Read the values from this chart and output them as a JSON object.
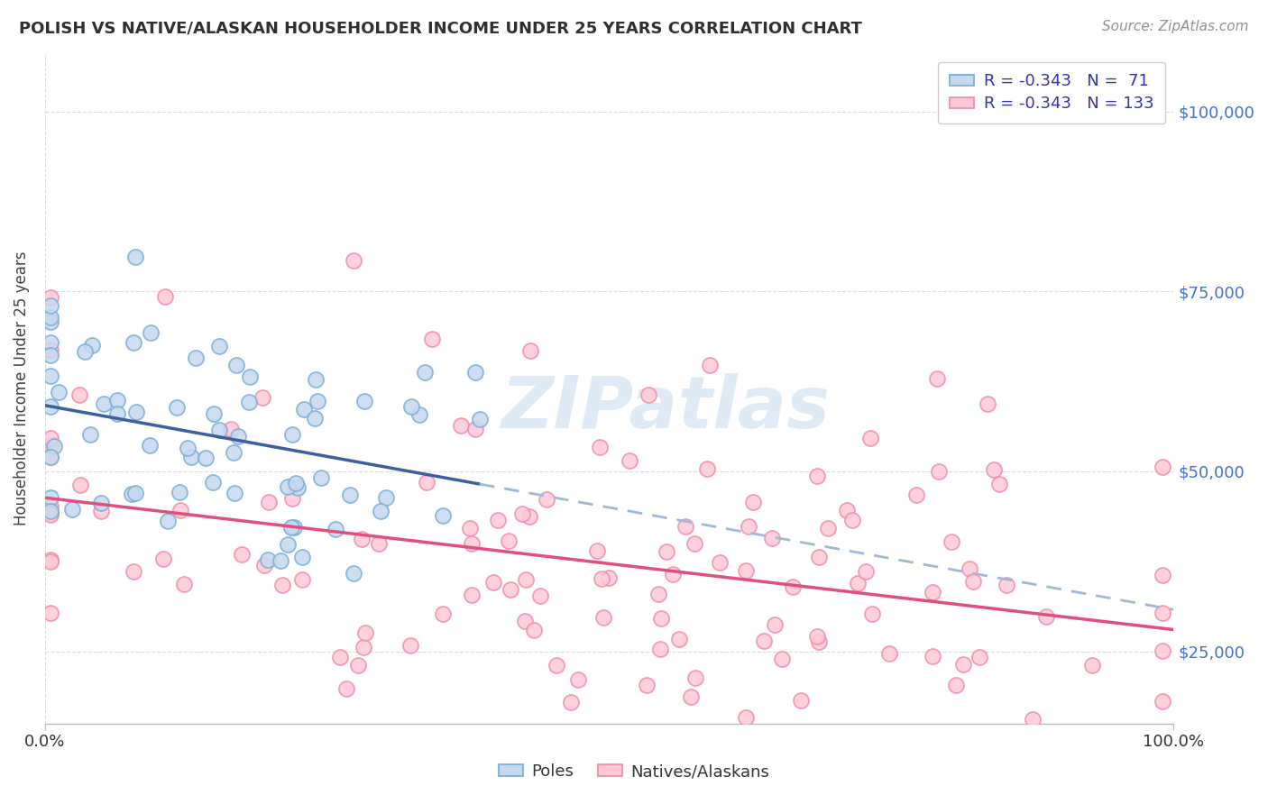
{
  "title": "POLISH VS NATIVE/ALASKAN HOUSEHOLDER INCOME UNDER 25 YEARS CORRELATION CHART",
  "source_text": "Source: ZipAtlas.com",
  "ylabel": "Householder Income Under 25 years",
  "watermark": "ZIPatlas",
  "legend_blue_label": "Poles",
  "legend_pink_label": "Natives/Alaskans",
  "R_blue": -0.343,
  "N_blue": 71,
  "R_pink": -0.343,
  "N_pink": 133,
  "xlim": [
    0.0,
    100.0
  ],
  "ylim": [
    15000,
    108000
  ],
  "yticks": [
    25000,
    50000,
    75000,
    100000
  ],
  "ytick_labels": [
    "$25,000",
    "$50,000",
    "$75,000",
    "$100,000"
  ],
  "xtick_labels": [
    "0.0%",
    "100.0%"
  ],
  "blue_face_color": "#c6d9f0",
  "blue_edge_color": "#7aafd4",
  "blue_line_color": "#3c5fa0",
  "pink_face_color": "#ffc8d8",
  "pink_edge_color": "#f090a8",
  "pink_line_color": "#e0507a",
  "dashed_line_color": "#a0b8d8",
  "background_color": "#ffffff",
  "grid_color": "#d8d8d8",
  "title_color": "#303030",
  "source_color": "#909090",
  "ylabel_color": "#404040",
  "ytick_color": "#4472c4",
  "watermark_color": "#c8dff0"
}
